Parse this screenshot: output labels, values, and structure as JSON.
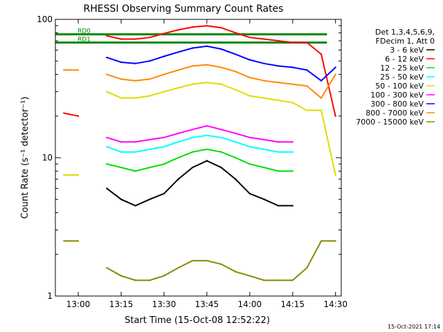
{
  "chart_data": {
    "type": "line",
    "title": "RHESSI Observing Summary Count Rates",
    "xlabel": "Start Time (15-Oct-08 12:52:22)",
    "ylabel": "Count Rate (s⁻¹ detector⁻¹)",
    "y_scale": "log",
    "ylim": [
      1,
      100
    ],
    "xlim": [
      "12:52",
      "14:32"
    ],
    "x_ticks": [
      "13:00",
      "13:15",
      "13:30",
      "13:45",
      "14:00",
      "14:15",
      "14:30"
    ],
    "y_ticks": [
      "1",
      "10",
      "100"
    ],
    "x": [
      "12:55",
      "13:00",
      "13:05",
      "13:10",
      "13:15",
      "13:20",
      "13:25",
      "13:30",
      "13:35",
      "13:40",
      "13:45",
      "13:50",
      "13:55",
      "14:00",
      "14:05",
      "14:10",
      "14:15",
      "14:20",
      "14:25",
      "14:30"
    ],
    "series": [
      {
        "name": "3 - 6 keV",
        "color": "#000000",
        "values": [
          null,
          null,
          null,
          6,
          5,
          4.5,
          5,
          5.5,
          7,
          8.5,
          9.5,
          8.5,
          7,
          5.5,
          5,
          4.5,
          4.5,
          null,
          null,
          null
        ]
      },
      {
        "name": "6 - 12 keV",
        "color": "#ff0000",
        "values": [
          21,
          20,
          null,
          76,
          72,
          72,
          74,
          79,
          84,
          88,
          90,
          87,
          80,
          74,
          72,
          70,
          68,
          68,
          56,
          20
        ]
      },
      {
        "name": "12 - 25 keV",
        "color": "#00dd00",
        "values": [
          null,
          null,
          null,
          9,
          8.5,
          8,
          8.5,
          9,
          10,
          11,
          11.5,
          11,
          10,
          9,
          8.5,
          8,
          8,
          null,
          null,
          null
        ]
      },
      {
        "name": "25 - 50 keV",
        "color": "#00ffff",
        "values": [
          null,
          null,
          null,
          12,
          11,
          11,
          11.5,
          12,
          13,
          14,
          14.5,
          14,
          13,
          12,
          11.5,
          11,
          11,
          null,
          null,
          null
        ]
      },
      {
        "name": "50 - 100 keV",
        "color": "#dddd00",
        "values": [
          7.5,
          7.5,
          null,
          30,
          27,
          27,
          28,
          30,
          32,
          34,
          35,
          34,
          31,
          28,
          27,
          26,
          25,
          22,
          22,
          7.5
        ]
      },
      {
        "name": "100 - 300 keV",
        "color": "#ff00ff",
        "values": [
          null,
          null,
          null,
          14,
          13,
          13,
          13.5,
          14,
          15,
          16,
          17,
          16,
          15,
          14,
          13.5,
          13,
          13,
          null,
          null,
          null
        ]
      },
      {
        "name": "300 - 800 keV",
        "color": "#0000ff",
        "values": [
          null,
          null,
          null,
          53,
          49,
          48,
          50,
          54,
          58,
          62,
          64,
          61,
          56,
          51,
          48,
          46,
          45,
          43,
          36,
          45
        ]
      },
      {
        "name": "800 - 7000 keV",
        "color": "#ff8800",
        "values": [
          43,
          43,
          null,
          40,
          37,
          36,
          37,
          40,
          43,
          46,
          47,
          45,
          42,
          38,
          36,
          35,
          34,
          33,
          27,
          40
        ]
      },
      {
        "name": "7000 - 15000 keV",
        "color": "#888800",
        "values": [
          2.5,
          2.5,
          null,
          1.6,
          1.4,
          1.3,
          1.3,
          1.4,
          1.6,
          1.8,
          1.8,
          1.7,
          1.5,
          1.4,
          1.3,
          1.3,
          1.3,
          1.6,
          2.5,
          2.5
        ]
      }
    ],
    "attenuator_lines": [
      {
        "label": "RD0",
        "y": 78,
        "x_start": "12:52",
        "x_end": "14:27"
      },
      {
        "label": "RD1",
        "y": 68,
        "x_start": "12:52",
        "x_end": "14:27"
      }
    ],
    "legend_header": [
      "Det 1,3,4,5,6,9,",
      "FDecim 1, Att 0"
    ],
    "legend_position": "right",
    "footer_date": "15-Oct-2021 17:14",
    "grid": false
  }
}
